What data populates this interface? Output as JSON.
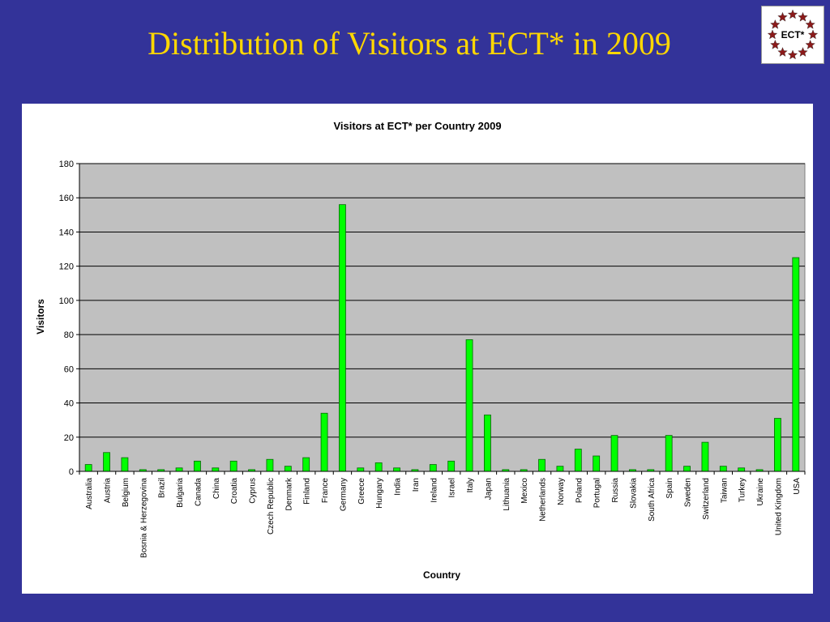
{
  "slide": {
    "title": "Distribution of Visitors at ECT* in 2009",
    "logo_text": "ECT*"
  },
  "colors": {
    "background": "#333399",
    "title": "#FFD700",
    "bar_fill": "#00FF00",
    "bar_stroke": "#006600",
    "plot_bg": "#C0C0C0",
    "star": "#8B1A1A"
  },
  "chart_data": {
    "type": "bar",
    "title": "Visitors at ECT* per Country 2009",
    "xlabel": "Country",
    "ylabel": "Visitors",
    "ylim": [
      0,
      180
    ],
    "yticks": [
      0,
      20,
      40,
      60,
      80,
      100,
      120,
      140,
      160,
      180
    ],
    "grid": true,
    "legend": "none",
    "categories": [
      "Australia",
      "Austria",
      "Belgium",
      "Bosnia & Herzegovina",
      "Brazil",
      "Bulgaria",
      "Canada",
      "China",
      "Croatia",
      "Cyprus",
      "Czech Republic",
      "Denmark",
      "Finland",
      "France",
      "Germany",
      "Greece",
      "Hungary",
      "India",
      "Iran",
      "Ireland",
      "Israel",
      "Italy",
      "Japan",
      "Lithuania",
      "Mexico",
      "Netherlands",
      "Norway",
      "Poland",
      "Portugal",
      "Russia",
      "Slovakia",
      "South Africa",
      "Spain",
      "Sweden",
      "Switzerland",
      "Taiwan",
      "Turkey",
      "Ukraine",
      "United Kingdom",
      "USA"
    ],
    "values": [
      4,
      11,
      8,
      1,
      1,
      2,
      6,
      2,
      6,
      1,
      7,
      3,
      8,
      34,
      156,
      2,
      5,
      2,
      1,
      4,
      6,
      77,
      33,
      1,
      1,
      7,
      3,
      13,
      9,
      21,
      1,
      1,
      21,
      3,
      17,
      3,
      2,
      1,
      31,
      125
    ]
  }
}
